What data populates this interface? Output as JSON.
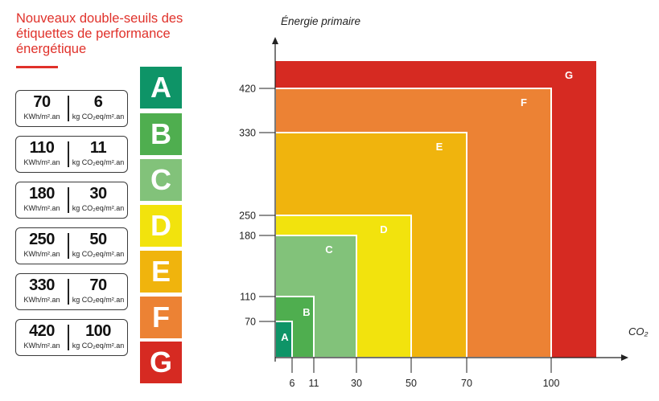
{
  "title": "Nouveaux double-seuils des étiquettes de performance énergétique",
  "units": {
    "energy": "KWh/m².an",
    "co2": "kg CO₂eq/m².an"
  },
  "classes": [
    {
      "label": "A",
      "energy": "70",
      "co2": "6",
      "color": "#0e9467"
    },
    {
      "label": "B",
      "energy": "110",
      "co2": "11",
      "color": "#4fae4f"
    },
    {
      "label": "C",
      "energy": "180",
      "co2": "30",
      "color": "#82c27a"
    },
    {
      "label": "D",
      "energy": "250",
      "co2": "50",
      "color": "#f2e30d"
    },
    {
      "label": "E",
      "energy": "330",
      "co2": "70",
      "color": "#f0b40d"
    },
    {
      "label": "F",
      "energy": "420",
      "co2": "100",
      "color": "#ec8234"
    },
    {
      "label": "G",
      "energy": "",
      "co2": "",
      "color": "#d62a22"
    }
  ],
  "chart_data": {
    "type": "nested-threshold-squares",
    "ylabel": "Énergie primaire",
    "xlabel": "CO₂",
    "y_ticks": [
      "70",
      "110",
      "180",
      "250",
      "330",
      "420"
    ],
    "x_ticks": [
      "6",
      "11",
      "30",
      "50",
      "70",
      "100"
    ],
    "regions": [
      {
        "label": "G",
        "co2_max": null,
        "energy_max": null,
        "color": "#d62a22"
      },
      {
        "label": "F",
        "co2_max": 100,
        "energy_max": 420,
        "color": "#ec8234"
      },
      {
        "label": "E",
        "co2_max": 70,
        "energy_max": 330,
        "color": "#f0b40d"
      },
      {
        "label": "D",
        "co2_max": 50,
        "energy_max": 250,
        "color": "#f2e30d"
      },
      {
        "label": "C",
        "co2_max": 30,
        "energy_max": 180,
        "color": "#82c27a"
      },
      {
        "label": "B",
        "co2_max": 11,
        "energy_max": 110,
        "color": "#4fae4f"
      },
      {
        "label": "A",
        "co2_max": 6,
        "energy_max": 70,
        "color": "#0e9467"
      }
    ]
  }
}
